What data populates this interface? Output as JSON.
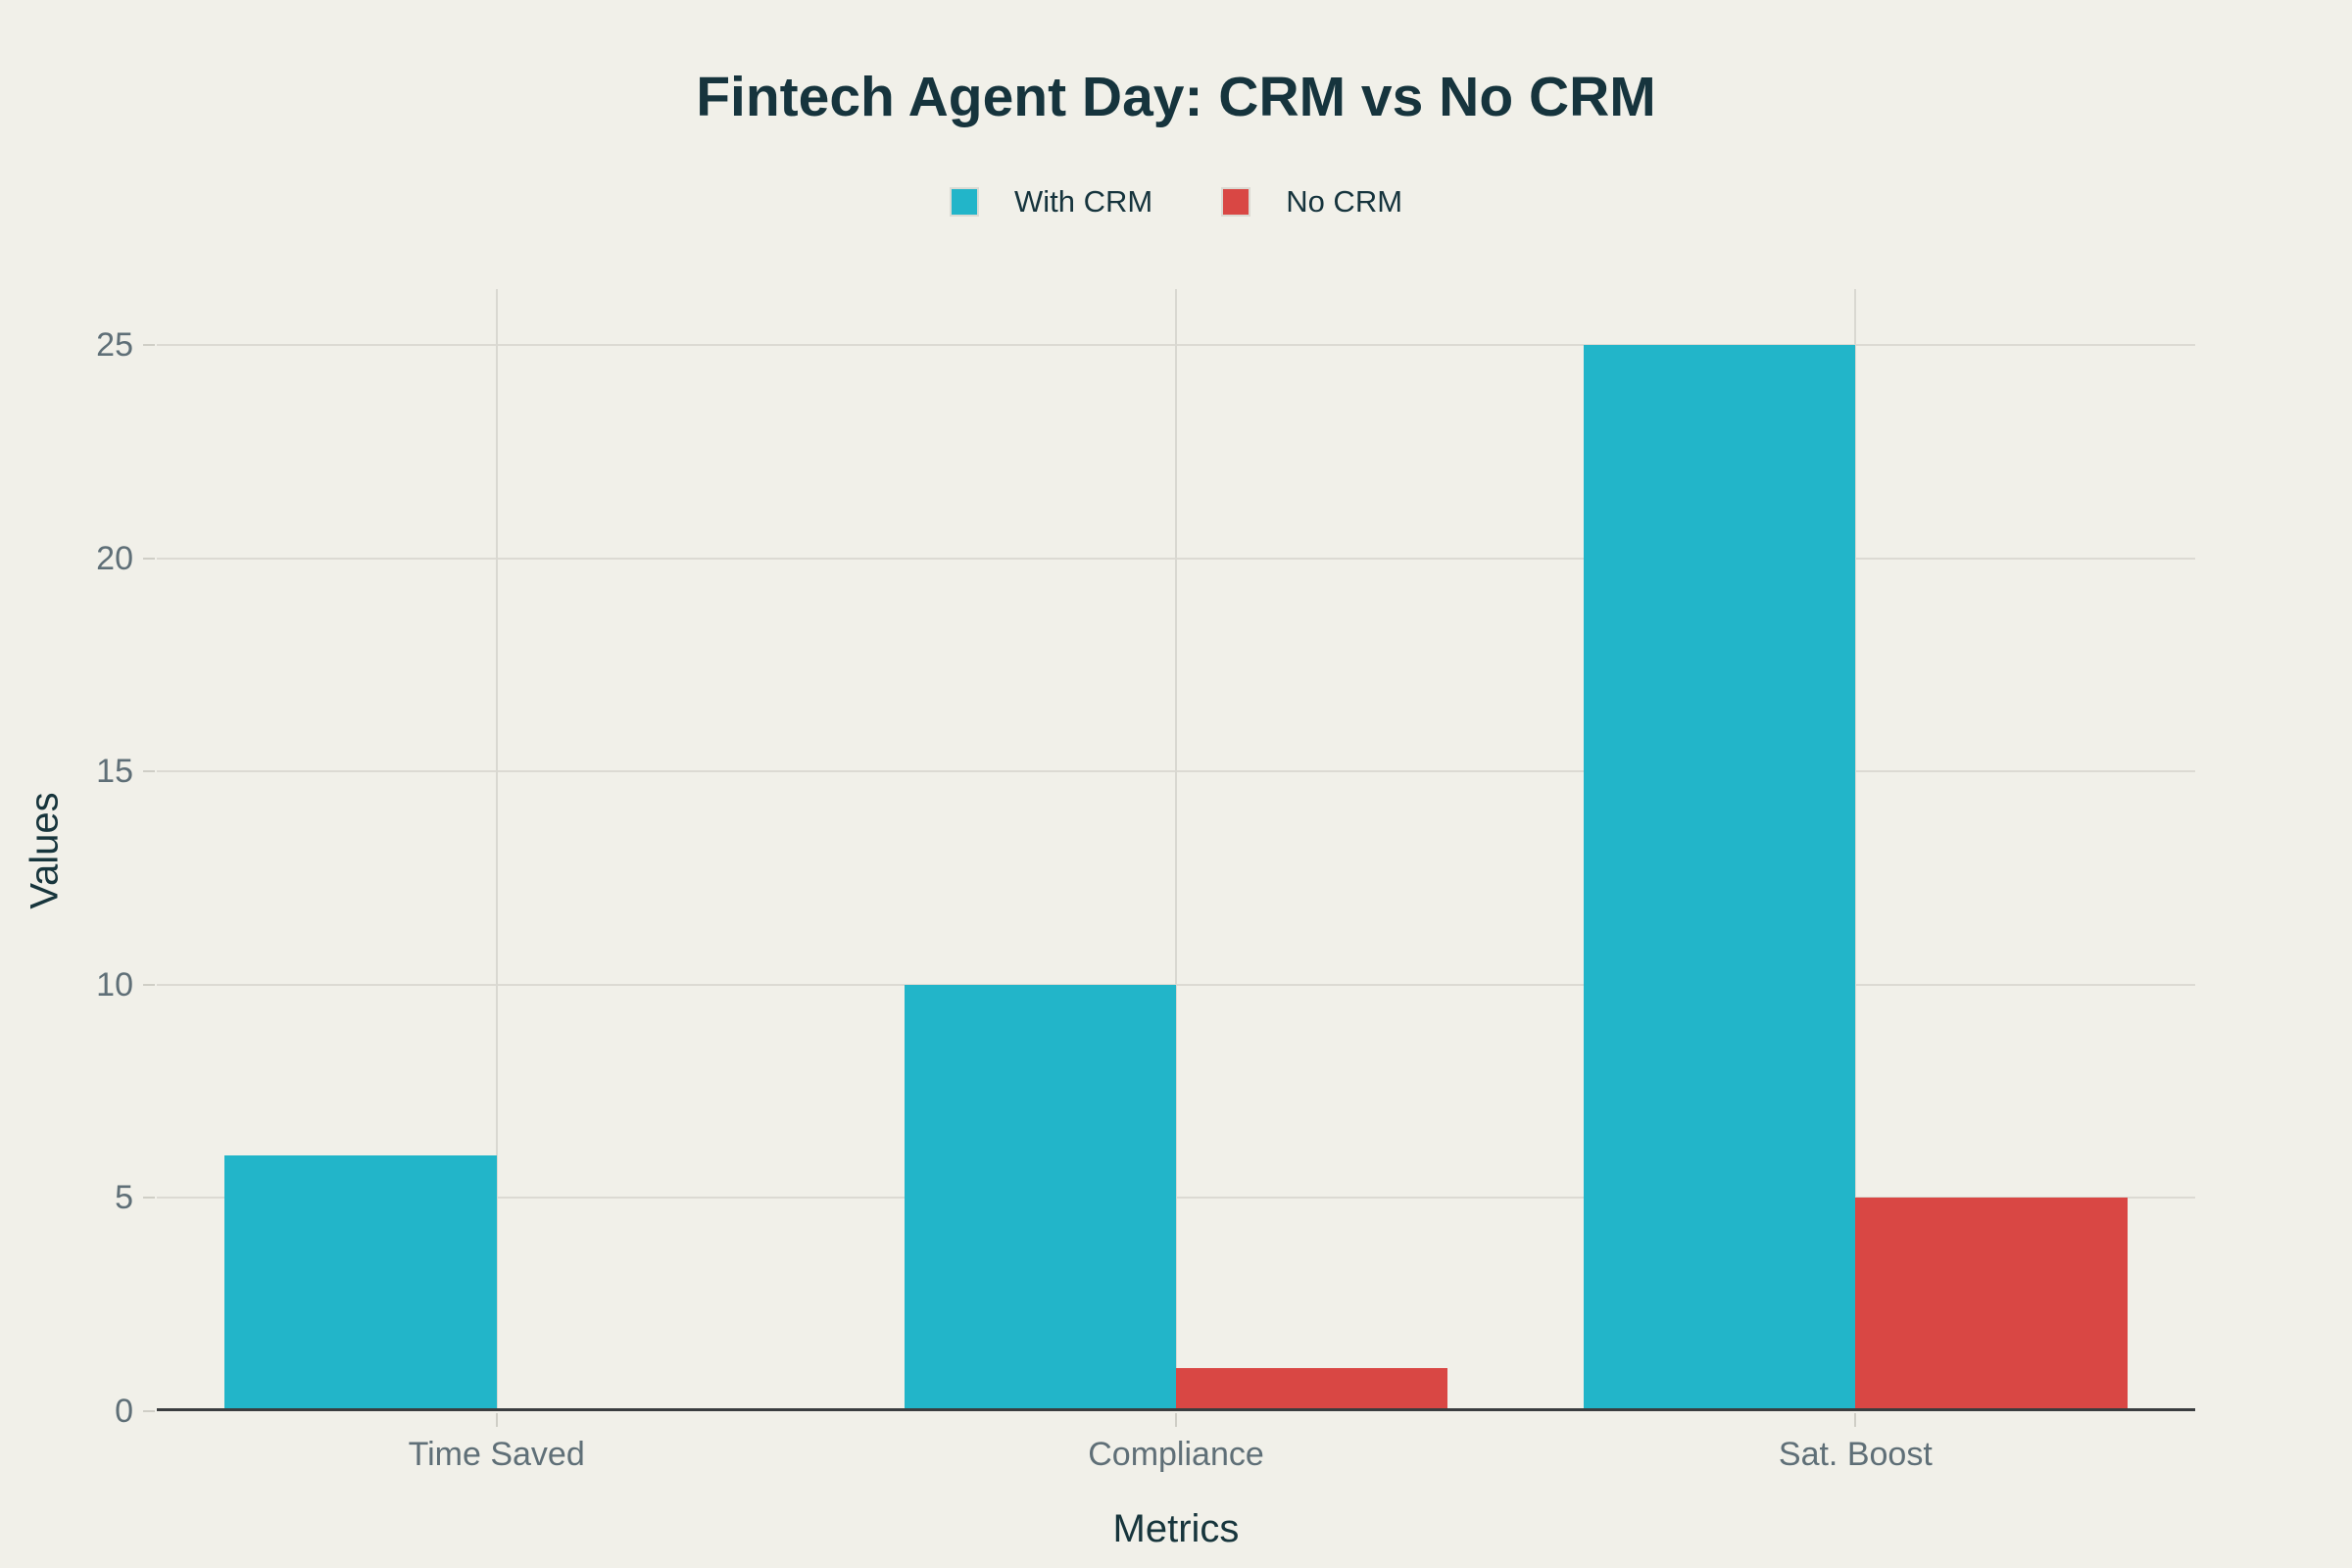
{
  "chart_data": {
    "type": "bar",
    "title": "Fintech Agent Day: CRM vs No CRM",
    "categories": [
      "Time Saved",
      "Compliance",
      "Sat. Boost"
    ],
    "series": [
      {
        "name": "With CRM",
        "color": "#22b5c9",
        "values": [
          6,
          10,
          25
        ]
      },
      {
        "name": "No CRM",
        "color": "#d94744",
        "values": [
          0,
          1,
          5
        ]
      }
    ],
    "xlabel": "Metrics",
    "ylabel": "Values",
    "yticks": [
      0,
      5,
      10,
      15,
      20,
      25
    ],
    "ylim": [
      0,
      26.32
    ],
    "grid": true,
    "legend_position": "top-center",
    "colors": {
      "background": "#f1f0e9",
      "title_text": "#16343d",
      "axis_title_text": "#17353c",
      "tick_label_text": "#5f6f77",
      "gridline": "#dcdad3",
      "axis_line": "#3a3d3f",
      "legend_swatch_border": "#dbdad3"
    }
  }
}
